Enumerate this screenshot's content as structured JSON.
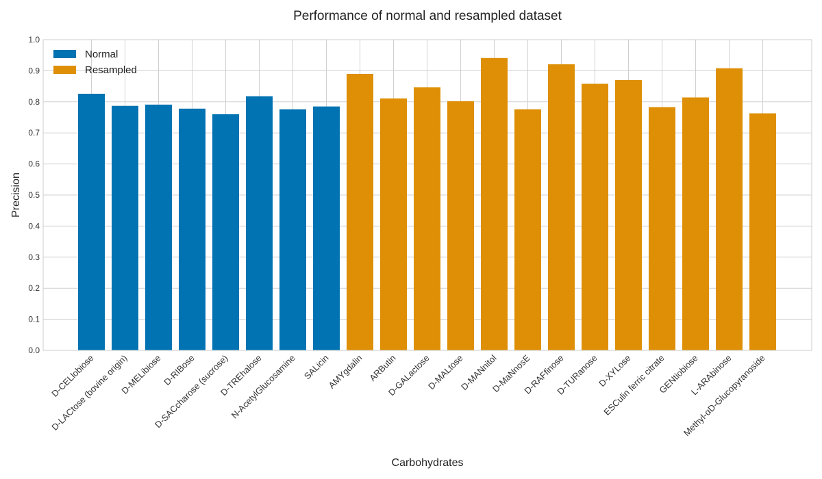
{
  "chart_data": {
    "type": "bar",
    "title": "Performance of normal and resampled dataset",
    "xlabel": "Carbohydrates",
    "ylabel": "Precision",
    "ylim": [
      0,
      1.0
    ],
    "yticks": [
      "0.0",
      "0.1",
      "0.2",
      "0.3",
      "0.4",
      "0.5",
      "0.6",
      "0.7",
      "0.8",
      "0.9",
      "1.0"
    ],
    "grid": true,
    "legend_position": "top-left",
    "categories": [
      "D-CELlobiose",
      "D-LACtose (bovine origin)",
      "D-MELibiose",
      "D-RIBose",
      "D-SACcharose (sucrose)",
      "D-TREhalose",
      "N-AcetylGlucosamine",
      "SALicin",
      "AMYgdalin",
      "ARButin",
      "D-GALactose",
      "D-MALtose",
      "D-MANnitol",
      "D-MaNnosE",
      "D-RAFfinose",
      "D-TURanose",
      "D-XYLose",
      "ESCulin ferric citrate",
      "GENtiobiose",
      "L-ARAbinose",
      "Methyl-αD-Glucopyranoside"
    ],
    "series": [
      {
        "name": "Normal",
        "color": "#0173b2",
        "values": [
          0.826,
          0.787,
          0.791,
          0.778,
          0.76,
          0.818,
          0.776,
          0.785,
          null,
          null,
          null,
          null,
          null,
          null,
          null,
          null,
          null,
          null,
          null,
          null,
          null
        ]
      },
      {
        "name": "Resampled",
        "color": "#de8f05",
        "values": [
          null,
          null,
          null,
          null,
          null,
          null,
          null,
          null,
          0.89,
          0.811,
          0.847,
          0.802,
          0.941,
          0.776,
          0.921,
          0.858,
          0.87,
          0.783,
          0.814,
          0.908,
          0.763
        ]
      }
    ]
  }
}
